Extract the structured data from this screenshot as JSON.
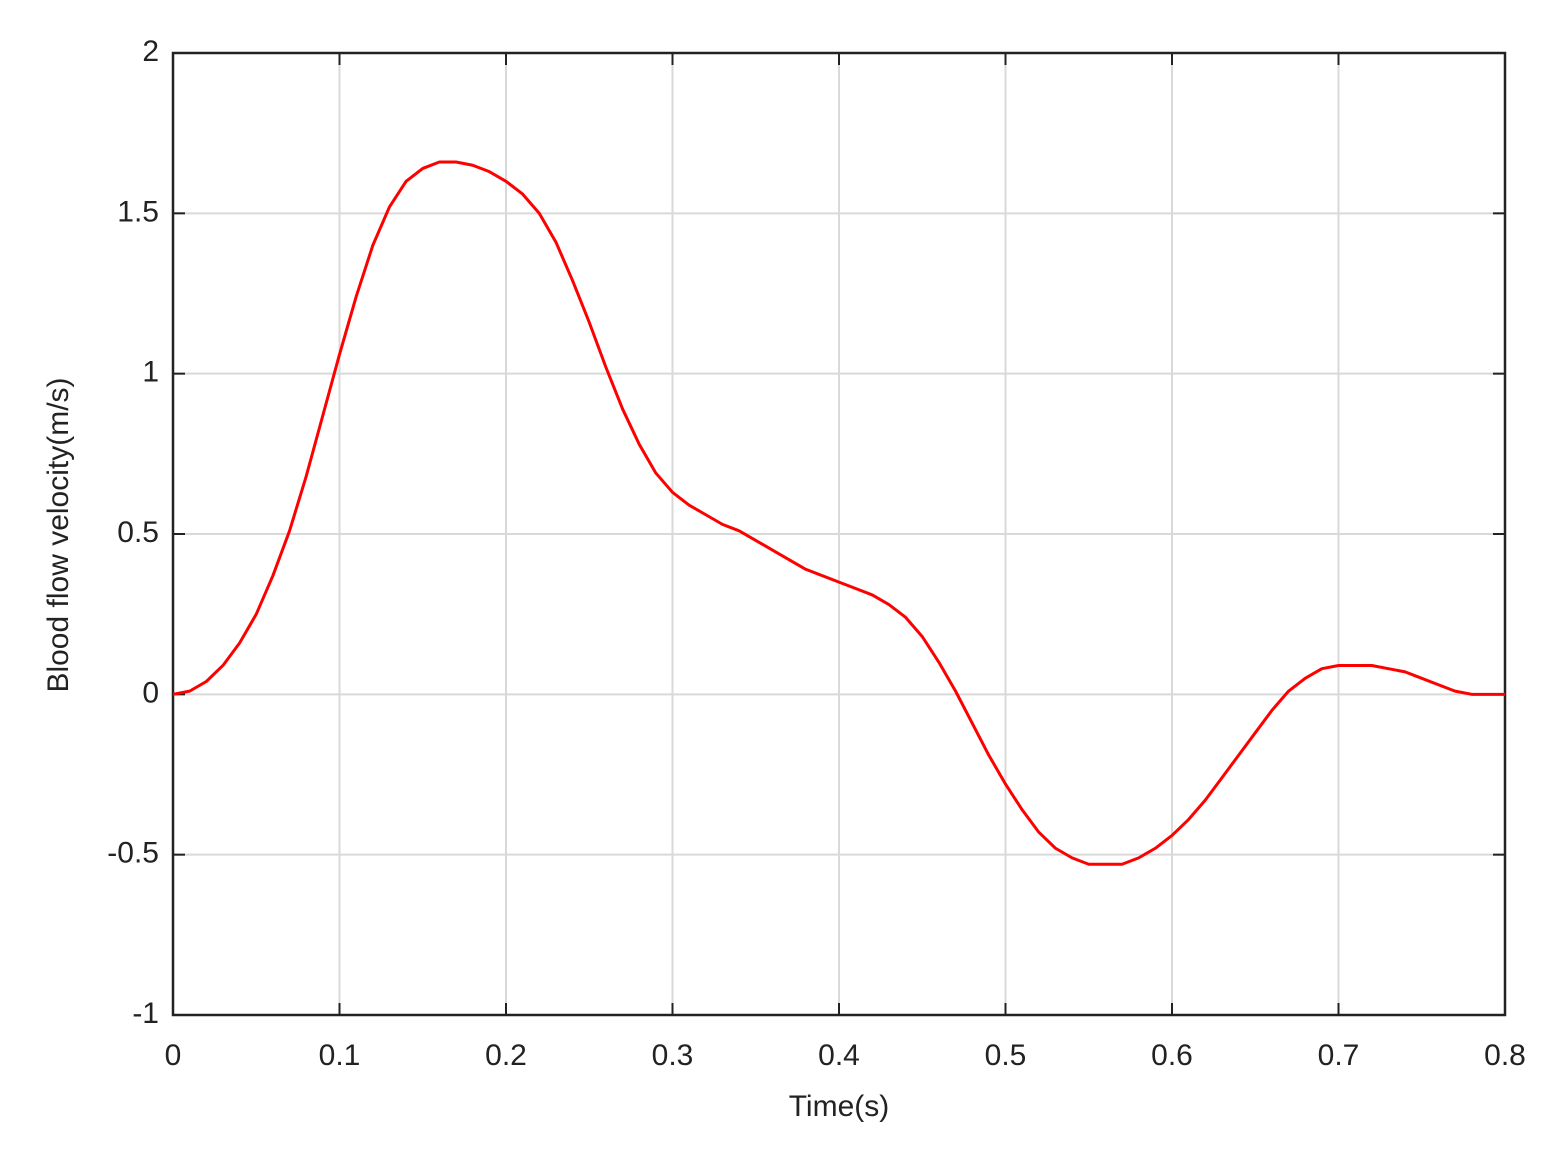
{
  "chart_data": {
    "type": "line",
    "x_label": "Time(s)",
    "y_label": "Blood flow velocity(m/s)",
    "x": [
      0,
      0.01,
      0.02,
      0.03,
      0.04,
      0.05,
      0.06,
      0.07,
      0.08,
      0.09,
      0.1,
      0.11,
      0.12,
      0.13,
      0.14,
      0.15,
      0.16,
      0.17,
      0.18,
      0.19,
      0.2,
      0.21,
      0.22,
      0.23,
      0.24,
      0.25,
      0.26,
      0.27,
      0.28,
      0.29,
      0.3,
      0.31,
      0.32,
      0.33,
      0.34,
      0.35,
      0.36,
      0.37,
      0.38,
      0.39,
      0.4,
      0.41,
      0.42,
      0.43,
      0.44,
      0.45,
      0.46,
      0.47,
      0.48,
      0.49,
      0.5,
      0.51,
      0.52,
      0.53,
      0.54,
      0.55,
      0.56,
      0.57,
      0.58,
      0.59,
      0.6,
      0.61,
      0.62,
      0.63,
      0.64,
      0.65,
      0.66,
      0.67,
      0.68,
      0.69,
      0.7,
      0.71,
      0.72,
      0.73,
      0.74,
      0.75,
      0.76,
      0.77,
      0.78,
      0.79,
      0.8
    ],
    "series": [
      {
        "color": "#ff0000",
        "values": [
          0,
          0.01,
          0.04,
          0.09,
          0.16,
          0.25,
          0.37,
          0.51,
          0.68,
          0.87,
          1.06,
          1.24,
          1.4,
          1.52,
          1.6,
          1.64,
          1.66,
          1.66,
          1.65,
          1.63,
          1.6,
          1.56,
          1.5,
          1.41,
          1.29,
          1.16,
          1.02,
          0.89,
          0.78,
          0.69,
          0.63,
          0.59,
          0.56,
          0.53,
          0.51,
          0.48,
          0.45,
          0.42,
          0.39,
          0.37,
          0.35,
          0.33,
          0.31,
          0.28,
          0.24,
          0.18,
          0.1,
          0.01,
          -0.09,
          -0.19,
          -0.28,
          -0.36,
          -0.43,
          -0.48,
          -0.51,
          -0.53,
          -0.53,
          -0.53,
          -0.51,
          -0.48,
          -0.44,
          -0.39,
          -0.33,
          -0.26,
          -0.19,
          -0.12,
          -0.05,
          0.01,
          0.05,
          0.08,
          0.09,
          0.09,
          0.09,
          0.08,
          0.07,
          0.05,
          0.03,
          0.01,
          0,
          0,
          0
        ]
      }
    ],
    "xlim": [
      0,
      0.8
    ],
    "ylim": [
      -1,
      2
    ],
    "xticks": [
      0,
      0.1,
      0.2,
      0.3,
      0.4,
      0.5,
      0.6,
      0.7,
      0.8
    ],
    "yticks": [
      -1,
      -0.5,
      0,
      0.5,
      1,
      1.5,
      2
    ],
    "grid": true
  }
}
